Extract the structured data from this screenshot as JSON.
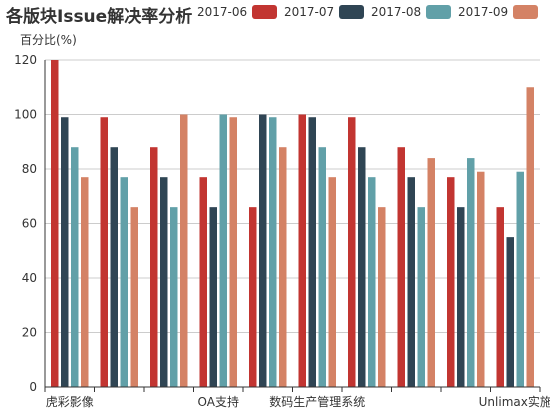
{
  "chart_data": {
    "type": "bar",
    "title": "各版块Issue解决率分析",
    "ylabel": "百分比(%)",
    "xlabel": "",
    "ylim": [
      0,
      120
    ],
    "yticks": [
      0,
      20,
      40,
      60,
      80,
      100,
      120
    ],
    "grid": true,
    "legend_position": "top",
    "categories": [
      "虎彩影像",
      "",
      "",
      "OA支持",
      "",
      "数码生产管理系统",
      "",
      "",
      "",
      "Unlimax实施"
    ],
    "series": [
      {
        "name": "2017-06",
        "color": "#c23531",
        "values": [
          120,
          99,
          88,
          77,
          66,
          100,
          99,
          88,
          77,
          66
        ]
      },
      {
        "name": "2017-07",
        "color": "#2f4554",
        "values": [
          99,
          88,
          77,
          66,
          100,
          99,
          88,
          77,
          66,
          55
        ]
      },
      {
        "name": "2017-08",
        "color": "#61a0a8",
        "values": [
          88,
          77,
          66,
          100,
          99,
          88,
          77,
          66,
          84,
          79
        ]
      },
      {
        "name": "2017-09",
        "color": "#d48265",
        "values": [
          77,
          66,
          100,
          99,
          88,
          77,
          66,
          84,
          79,
          110
        ]
      }
    ]
  }
}
